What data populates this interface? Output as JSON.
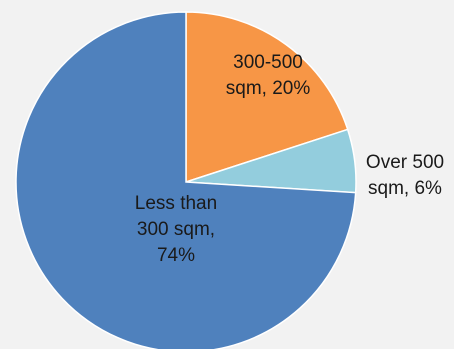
{
  "chart_data": {
    "type": "pie",
    "start_angle_deg": 0,
    "direction": "clockwise",
    "slices": [
      {
        "label": "300-500 sqm, 20%",
        "line1": "300-500",
        "line2": "sqm, 20%",
        "line3": "",
        "value": 20,
        "color": "#f79646"
      },
      {
        "label": "Over 500 sqm, 6%",
        "line1": "Over 500",
        "line2": "sqm, 6%",
        "line3": "",
        "value": 6,
        "color": "#93cddd"
      },
      {
        "label": "Less than 300 sqm, 74%",
        "line1": "Less than",
        "line2": "300 sqm,",
        "line3": "74%",
        "value": 74,
        "color": "#4f81bd"
      }
    ],
    "title": "",
    "legend": "none"
  }
}
